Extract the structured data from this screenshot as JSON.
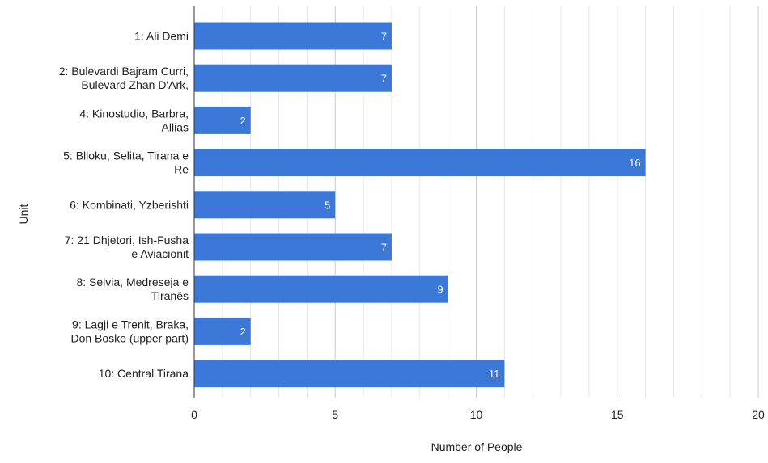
{
  "chart_data": {
    "type": "bar",
    "orientation": "horizontal",
    "title": "",
    "xlabel": "Number of People",
    "ylabel": "Unit",
    "xlim": [
      0,
      20
    ],
    "major_ticks": [
      0,
      5,
      10,
      15,
      20
    ],
    "minor_tick_step": 1,
    "grid": true,
    "data_labels": true,
    "bar_color": "#3c78d8",
    "categories": [
      [
        "1: Ali Demi"
      ],
      [
        "2: Bulevardi Bajram Curri,",
        "Bulevard Zhan D'Ark,"
      ],
      [
        "4: Kinostudio, Barbra,",
        "Allias"
      ],
      [
        "5: Blloku, Selita, Tirana e",
        "Re"
      ],
      [
        "6: Kombinati, Yzberishti"
      ],
      [
        "7: 21 Dhjetori, Ish-Fusha",
        "e Aviacionit"
      ],
      [
        "8: Selvia, Medreseja e",
        "Tiranës"
      ],
      [
        "9: Lagji e Trenit, Braka,",
        "Don Bosko (upper part)"
      ],
      [
        "10: Central Tirana"
      ]
    ],
    "values": [
      7,
      7,
      2,
      16,
      5,
      7,
      9,
      2,
      11
    ]
  }
}
